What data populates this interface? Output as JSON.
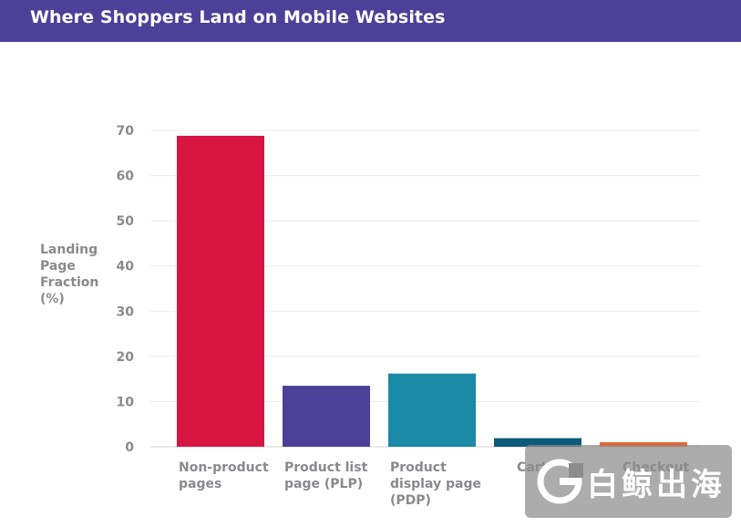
{
  "header": {
    "title": "Where Shoppers Land on Mobile Websites"
  },
  "chart_data": {
    "type": "bar",
    "title": "Where Shoppers Land on Mobile Websites",
    "ylabel": "Landing Page Fraction (%)",
    "xlabel": "",
    "ylim": [
      0,
      70
    ],
    "yticks": [
      0,
      10,
      20,
      30,
      40,
      50,
      60,
      70
    ],
    "grid": true,
    "categories": [
      [
        "Non-product",
        "pages"
      ],
      [
        "Product list",
        "page (PLP)"
      ],
      [
        "Product",
        "display page",
        "(PDP)"
      ],
      [
        "Cart"
      ],
      [
        "Checkout"
      ]
    ],
    "values": [
      68.8,
      13.5,
      16.2,
      1.9,
      1.0
    ],
    "colors": [
      "#d81441",
      "#4d4098",
      "#1a8aa6",
      "#0d5a7a",
      "#e8642c"
    ]
  },
  "watermark": {
    "text": "白鲸出海"
  }
}
